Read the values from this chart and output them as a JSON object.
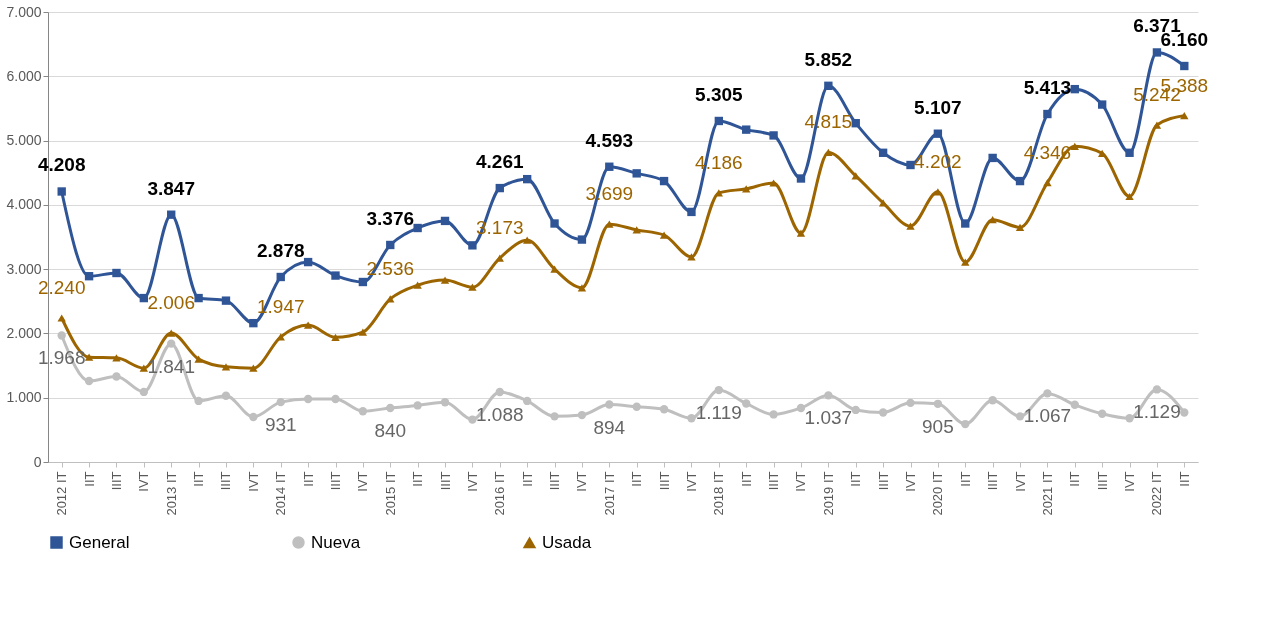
{
  "chart_data": {
    "type": "line",
    "categories": [
      "2012 IT",
      "IIT",
      "IIIT",
      "IVT",
      "2013 IT",
      "IIT",
      "IIIT",
      "IVT",
      "2014 IT",
      "IIT",
      "IIIT",
      "IVT",
      "2015 IT",
      "IIT",
      "IIIT",
      "IVT",
      "2016 IT",
      "IIT",
      "IIIT",
      "IVT",
      "2017 IT",
      "IIT",
      "IIIT",
      "IVT",
      "2018 IT",
      "IIT",
      "IIIT",
      "IVT",
      "2019 IT",
      "IIT",
      "IIIT",
      "IVT",
      "2020 IT",
      "IIT",
      "IIIT",
      "IVT",
      "2021 IT",
      "IIT",
      "IIIT",
      "IVT",
      "2022 IT",
      "IIT"
    ],
    "series": [
      {
        "name": "General",
        "color": "#2f5597",
        "marker": "square",
        "values": [
          4208,
          2890,
          2940,
          2550,
          3847,
          2550,
          2510,
          2160,
          2878,
          3110,
          2900,
          2800,
          3376,
          3640,
          3750,
          3370,
          4261,
          4400,
          3710,
          3460,
          4593,
          4490,
          4370,
          3890,
          5305,
          5170,
          5080,
          4410,
          5852,
          5270,
          4810,
          4620,
          5107,
          3710,
          4730,
          4370,
          5413,
          5800,
          5560,
          4810,
          6371,
          6160
        ],
        "value_labels": [
          "4.208",
          null,
          null,
          null,
          "3.847",
          null,
          null,
          null,
          "2.878",
          null,
          null,
          null,
          "3.376",
          null,
          null,
          null,
          "4.261",
          null,
          null,
          null,
          "4.593",
          null,
          null,
          null,
          "5.305",
          null,
          null,
          null,
          "5.852",
          null,
          null,
          null,
          "5.107",
          null,
          null,
          null,
          "5.413",
          null,
          null,
          null,
          "6.371",
          "6.160"
        ]
      },
      {
        "name": "Nueva",
        "color": "#bfbfbf",
        "marker": "circle",
        "values": [
          1968,
          1260,
          1330,
          1090,
          1841,
          950,
          1030,
          700,
          931,
          980,
          980,
          790,
          840,
          880,
          930,
          660,
          1088,
          950,
          710,
          730,
          894,
          860,
          820,
          680,
          1119,
          910,
          740,
          840,
          1037,
          810,
          770,
          920,
          905,
          590,
          960,
          710,
          1067,
          890,
          750,
          680,
          1129,
          770
        ],
        "value_labels": [
          "1.968",
          null,
          null,
          null,
          "1.841",
          null,
          null,
          null,
          "931",
          null,
          null,
          null,
          "840",
          null,
          null,
          null,
          "1.088",
          null,
          null,
          null,
          "894",
          null,
          null,
          null,
          "1.119",
          null,
          null,
          null,
          "1.037",
          null,
          null,
          null,
          "905",
          null,
          null,
          null,
          "1.067",
          null,
          null,
          null,
          "1.129",
          null
        ]
      },
      {
        "name": "Usada",
        "color": "#9c6500",
        "marker": "triangle",
        "values": [
          2240,
          1630,
          1620,
          1460,
          2006,
          1600,
          1480,
          1460,
          1947,
          2130,
          1940,
          2020,
          2536,
          2750,
          2830,
          2720,
          3173,
          3450,
          3000,
          2710,
          3699,
          3610,
          3530,
          3190,
          4186,
          4250,
          4340,
          3560,
          4815,
          4450,
          4030,
          3670,
          4202,
          3110,
          3770,
          3650,
          4346,
          4910,
          4800,
          4130,
          5242,
          5388
        ],
        "value_labels": [
          "2.240",
          null,
          null,
          null,
          "2.006",
          null,
          null,
          null,
          "1.947",
          null,
          null,
          null,
          "2.536",
          null,
          null,
          null,
          "3.173",
          null,
          null,
          null,
          "3.699",
          null,
          null,
          null,
          "4.186",
          null,
          null,
          null,
          "4.815",
          null,
          null,
          null,
          "4.202",
          null,
          null,
          null,
          "4.346",
          null,
          null,
          null,
          "5.242",
          "5.388"
        ]
      }
    ],
    "ylim": [
      0,
      7000
    ],
    "yticks": [
      0,
      {
        "value": 1000,
        "label": "1.000"
      },
      {
        "value": 2000,
        "label": "2.000"
      },
      {
        "value": 3000,
        "label": "3.000"
      },
      {
        "value": 4000,
        "label": "4.000"
      },
      {
        "value": 5000,
        "label": "5.000"
      },
      {
        "value": 6000,
        "label": "6.000"
      },
      {
        "value": 7000,
        "label": "7.000"
      }
    ],
    "grid": "y",
    "legend": "bottom",
    "line_style": "solid"
  }
}
